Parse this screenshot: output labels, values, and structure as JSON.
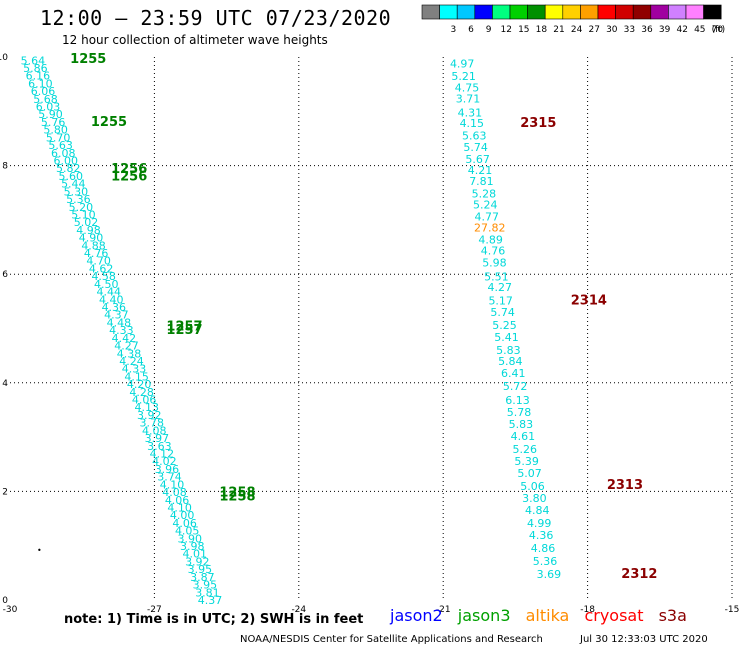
{
  "header": {
    "title": "12:00 – 23:59 UTC 07/23/2020",
    "subtitle": "12 hour collection of altimeter wave heights"
  },
  "color_scale": {
    "labels": [
      "",
      "3",
      "6",
      "9",
      "12",
      "15",
      "18",
      "21",
      "24",
      "27",
      "30",
      "33",
      "36",
      "39",
      "42",
      "45",
      "70"
    ],
    "colors": [
      "#808080",
      "#00ffff",
      "#00c8ff",
      "#0000ff",
      "#00ff80",
      "#00d000",
      "#009000",
      "#ffff00",
      "#ffd000",
      "#ffa000",
      "#ff0000",
      "#d00000",
      "#900000",
      "#a000a0",
      "#d080ff",
      "#ff80ff",
      "#000000"
    ],
    "unit": "(ft)"
  },
  "footer": {
    "note": "note:  1) Time is in UTC;  2) SWH is in feet",
    "credit": "NOAA/NESDIS Center for Satellite Applications and Research",
    "timestamp": "Jul 30 12:33:03 UTC 2020"
  },
  "satellites": [
    {
      "name": "jason2",
      "color": "#0000ff"
    },
    {
      "name": "jason3",
      "color": "#00a000"
    },
    {
      "name": "altika",
      "color": "#ff8c00"
    },
    {
      "name": "cryosat",
      "color": "#ff0000"
    },
    {
      "name": "s3a",
      "color": "#8b0000"
    }
  ],
  "chart_data": {
    "type": "scatter",
    "title": "12:00 – 23:59 UTC 07/23/2020",
    "xlabel": "",
    "ylabel": "",
    "xlim": [
      -30,
      -15
    ],
    "ylim": [
      0,
      10
    ],
    "x_ticks": [
      "-30",
      "-27",
      "-24",
      "-21",
      "-18",
      "-15"
    ],
    "y_ticks": [
      "0",
      "2",
      "4",
      "6",
      "8",
      "10"
    ],
    "grid": true,
    "series": [
      {
        "name": "jason3",
        "color": "#00d8d8",
        "time_color": "#008000",
        "start": {
          "x": -29.78,
          "y": 9.94
        },
        "end": {
          "x": -26.1,
          "y": 0.0
        },
        "values": [
          "5.64",
          "5.86",
          "6.16",
          "6.10",
          "6.06",
          "5.68",
          "6.03",
          "5.90",
          "5.76",
          "5.80",
          "5.70",
          "5.63",
          "6.08",
          "6.00",
          "5.82",
          "5.60",
          "5.44",
          "5.30",
          "5.36",
          "5.20",
          "5.10",
          "5.02",
          "4.98",
          "4.90",
          "4.88",
          "4.76",
          "4.70",
          "4.62",
          "4.58",
          "4.50",
          "4.44",
          "4.40",
          "4.36",
          "4.37",
          "4.48",
          "4.33",
          "4.42",
          "4.27",
          "4.38",
          "4.24",
          "4.33",
          "4.15",
          "4.20",
          "4.28",
          "4.06",
          "4.13",
          "3.92",
          "3.78",
          "4.08",
          "3.97",
          "3.63",
          "4.12",
          "4.02",
          "3.96",
          "3.74",
          "4.10",
          "4.08",
          "4.06",
          "4.10",
          "4.00",
          "4.06",
          "4.05",
          "3.90",
          "3.98",
          "4.01",
          "3.92",
          "3.95",
          "3.87",
          "3.95",
          "3.81",
          "4.37"
        ],
        "time_labels": [
          {
            "text": "1255",
            "x": -28.75,
            "y": 9.96
          },
          {
            "text": "1255",
            "x": -28.32,
            "y": 8.8
          },
          {
            "text": "1256",
            "x": -27.9,
            "y": 7.94
          },
          {
            "text": "1256",
            "x": -27.9,
            "y": 7.8
          },
          {
            "text": "1257",
            "x": -26.75,
            "y": 5.04
          },
          {
            "text": "1257",
            "x": -26.75,
            "y": 4.97
          },
          {
            "text": "1258",
            "x": -25.65,
            "y": 1.98
          },
          {
            "text": "1258",
            "x": -25.65,
            "y": 1.91
          }
        ]
      },
      {
        "name": "cryosat",
        "color": "#00d8d8",
        "time_color": "#8b0000",
        "points": [
          {
            "v": "4.97",
            "x": -20.86,
            "y": 9.88
          },
          {
            "v": "5.21",
            "x": -20.83,
            "y": 9.65
          },
          {
            "v": "4.75",
            "x": -20.76,
            "y": 9.44
          },
          {
            "v": "3.71",
            "x": -20.74,
            "y": 9.24
          },
          {
            "v": "4.31",
            "x": -20.7,
            "y": 8.98
          },
          {
            "v": "4.15",
            "x": -20.66,
            "y": 8.78
          },
          {
            "v": "5.63",
            "x": -20.61,
            "y": 8.55
          },
          {
            "v": "5.74",
            "x": -20.58,
            "y": 8.34
          },
          {
            "v": "5.67",
            "x": -20.54,
            "y": 8.12
          },
          {
            "v": "4.21",
            "x": -20.49,
            "y": 7.92
          },
          {
            "v": "7.81",
            "x": -20.46,
            "y": 7.72
          },
          {
            "v": "5.28",
            "x": -20.41,
            "y": 7.49
          },
          {
            "v": "5.24",
            "x": -20.38,
            "y": 7.28
          },
          {
            "v": "4.77",
            "x": -20.35,
            "y": 7.06
          },
          {
            "v": "27.82",
            "x": -20.36,
            "y": 6.86,
            "color": "#ff8c00"
          },
          {
            "v": "4.89",
            "x": -20.27,
            "y": 6.64
          },
          {
            "v": "4.76",
            "x": -20.22,
            "y": 6.44
          },
          {
            "v": "5.98",
            "x": -20.19,
            "y": 6.22
          },
          {
            "v": "5.51",
            "x": -20.15,
            "y": 5.96
          },
          {
            "v": "4.27",
            "x": -20.08,
            "y": 5.76
          },
          {
            "v": "5.17",
            "x": -20.06,
            "y": 5.52
          },
          {
            "v": "5.74",
            "x": -20.02,
            "y": 5.3
          },
          {
            "v": "5.25",
            "x": -19.98,
            "y": 5.06
          },
          {
            "v": "5.41",
            "x": -19.94,
            "y": 4.84
          },
          {
            "v": "5.83",
            "x": -19.9,
            "y": 4.6
          },
          {
            "v": "5.84",
            "x": -19.86,
            "y": 4.4
          },
          {
            "v": "6.41",
            "x": -19.8,
            "y": 4.18
          },
          {
            "v": "5.72",
            "x": -19.76,
            "y": 3.94
          },
          {
            "v": "6.13",
            "x": -19.71,
            "y": 3.68
          },
          {
            "v": "5.78",
            "x": -19.68,
            "y": 3.46
          },
          {
            "v": "5.83",
            "x": -19.64,
            "y": 3.24
          },
          {
            "v": "4.61",
            "x": -19.6,
            "y": 3.02
          },
          {
            "v": "5.26",
            "x": -19.56,
            "y": 2.78
          },
          {
            "v": "5.39",
            "x": -19.52,
            "y": 2.56
          },
          {
            "v": "5.07",
            "x": -19.46,
            "y": 2.34
          },
          {
            "v": "5.06",
            "x": -19.4,
            "y": 2.1
          },
          {
            "v": "3.80",
            "x": -19.36,
            "y": 1.88
          },
          {
            "v": "4.84",
            "x": -19.3,
            "y": 1.66
          },
          {
            "v": "4.99",
            "x": -19.26,
            "y": 1.42
          },
          {
            "v": "4.36",
            "x": -19.22,
            "y": 1.2
          },
          {
            "v": "4.86",
            "x": -19.18,
            "y": 0.96
          },
          {
            "v": "5.36",
            "x": -19.14,
            "y": 0.72
          },
          {
            "v": "3.69",
            "x": -19.06,
            "y": 0.48
          }
        ],
        "time_labels": [
          {
            "text": "2315",
            "x": -19.4,
            "y": 8.78
          },
          {
            "text": "2314",
            "x": -18.35,
            "y": 5.52
          },
          {
            "text": "2313",
            "x": -17.6,
            "y": 2.12
          },
          {
            "text": "2312",
            "x": -17.3,
            "y": 0.48
          }
        ]
      }
    ],
    "annotations": [
      "•"
    ]
  }
}
